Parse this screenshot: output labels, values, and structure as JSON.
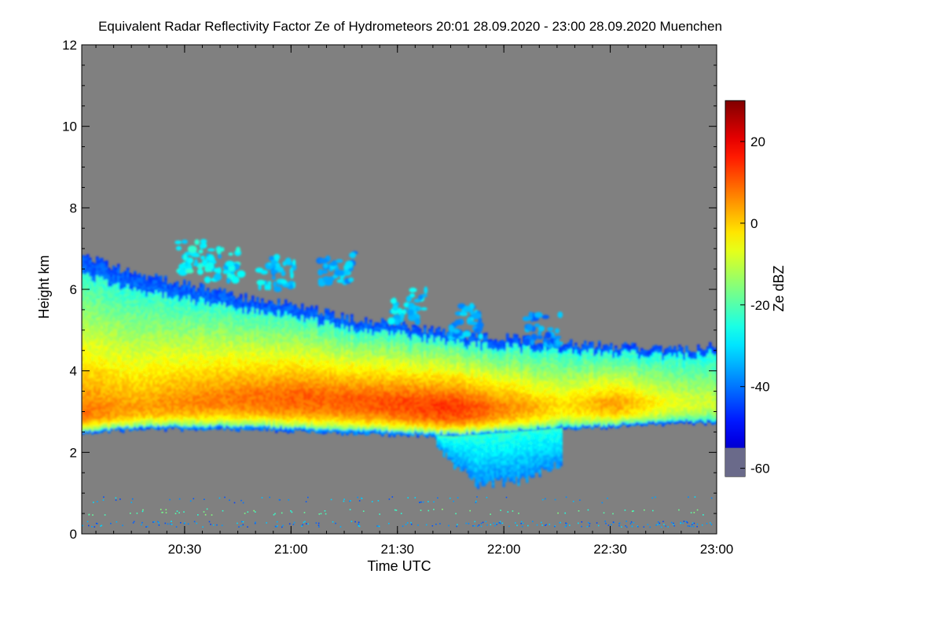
{
  "chart_data": {
    "type": "heatmap",
    "title": "Equivalent Radar Reflectivity Factor Ze of Hydrometeors   20:01 28.09.2020 - 23:00 28.09.2020 Muenchen",
    "xlabel": "Time UTC",
    "ylabel": "Height km",
    "xlim": [
      "20:01",
      "23:00"
    ],
    "ylim": [
      0,
      12
    ],
    "x_ticks": [
      "20:30",
      "21:00",
      "21:30",
      "22:00",
      "22:30",
      "23:00"
    ],
    "x_tick_minutes": [
      29,
      59,
      89,
      119,
      149,
      179
    ],
    "y_ticks": [
      0,
      2,
      4,
      6,
      8,
      10,
      12
    ],
    "colorbar": {
      "label": "Ze dBZ",
      "range": [
        -62,
        30
      ],
      "ticks": [
        -60,
        -40,
        -20,
        0,
        20
      ],
      "colormap": "jet"
    },
    "background_color": "#808080",
    "cloud": {
      "minutes": [
        0,
        15,
        30,
        45,
        60,
        75,
        90,
        105,
        120,
        135,
        150,
        165,
        179
      ],
      "top_km": [
        6.8,
        6.4,
        6.1,
        5.8,
        5.6,
        5.3,
        5.1,
        4.9,
        4.8,
        4.7,
        4.6,
        4.5,
        4.6
      ],
      "base_km": [
        2.5,
        2.6,
        2.6,
        2.6,
        2.55,
        2.5,
        2.45,
        2.4,
        2.5,
        2.6,
        2.65,
        2.75,
        2.75
      ],
      "core_center_km": [
        3.1,
        3.2,
        3.35,
        3.45,
        3.45,
        3.4,
        3.3,
        3.2,
        3.2,
        3.25,
        3.3,
        3.3,
        3.3
      ],
      "peak_dbz": [
        8,
        4,
        6,
        8,
        10,
        10,
        12,
        14,
        6,
        -2,
        4,
        -6,
        -10
      ]
    },
    "virga": {
      "minutes": [
        100,
        105,
        110,
        115,
        120,
        125,
        130,
        135
      ],
      "bottom_km": [
        2.2,
        1.7,
        1.3,
        1.25,
        1.3,
        1.4,
        1.6,
        1.7
      ],
      "dbz": -30
    },
    "upper_fragments": [
      {
        "minute": 32,
        "height_km": 6.8,
        "dbz": -28
      },
      {
        "minute": 40,
        "height_km": 6.6,
        "dbz": -30
      },
      {
        "minute": 55,
        "height_km": 6.4,
        "dbz": -32
      },
      {
        "minute": 72,
        "height_km": 6.5,
        "dbz": -35
      },
      {
        "minute": 92,
        "height_km": 5.6,
        "dbz": -32
      },
      {
        "minute": 108,
        "height_km": 5.2,
        "dbz": -35
      },
      {
        "minute": 130,
        "height_km": 5.0,
        "dbz": -38
      }
    ],
    "ground_clutter_km": [
      0.25,
      0.55,
      0.85
    ]
  }
}
